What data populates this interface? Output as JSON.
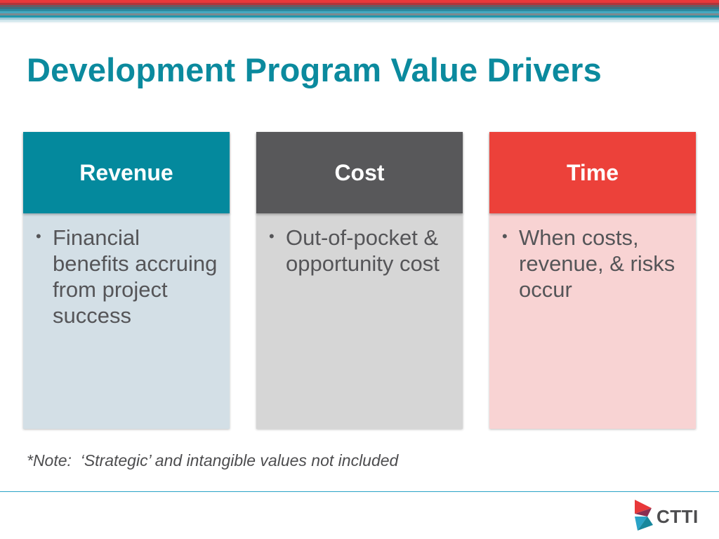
{
  "slide": {
    "title": "Development Program Value Drivers",
    "note": "*Note:  ‘Strategic’ and intangible values not included",
    "logo_text": "CTTI"
  },
  "cards": [
    {
      "header": "Revenue",
      "header_color": "#04899d",
      "body_color": "#d3dfe6",
      "bullets": [
        "Financial benefits accruing from project success"
      ]
    },
    {
      "header": "Cost",
      "header_color": "#58585a",
      "body_color": "#d6d6d6",
      "bullets": [
        "Out-of-pocket & opportunity cost"
      ]
    },
    {
      "header": "Time",
      "header_color": "#ec413a",
      "body_color": "#f8d3d3",
      "bullets": [
        "When costs, revenue, & risks occur"
      ]
    }
  ],
  "icons": {
    "bullet": "bullet-dot-icon",
    "logo_mark": "ctti-triangle-mark-icon"
  },
  "colors": {
    "title": "#0b8a9e",
    "rule": "#2aa3c7",
    "body_text": "#555558"
  }
}
